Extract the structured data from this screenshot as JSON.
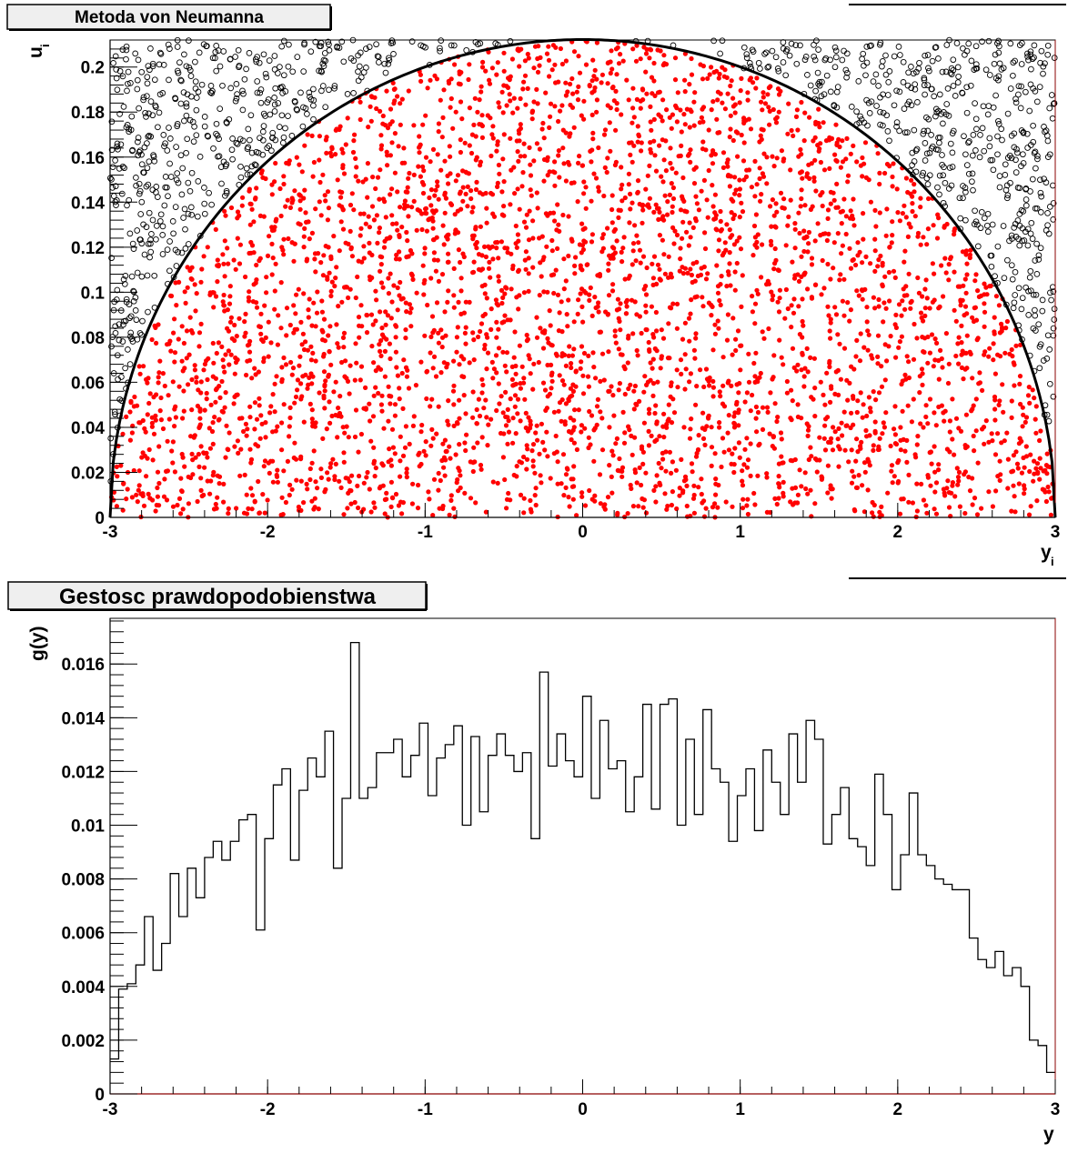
{
  "chart_data": [
    {
      "type": "scatter",
      "title": "Metoda von Neumanna",
      "xlabel": "y",
      "xlabel_sub": "i",
      "ylabel": "u",
      "ylabel_sub": "i",
      "xlim": [
        -3,
        3
      ],
      "ylim": [
        0,
        0.212
      ],
      "x_ticks": [
        "-3",
        "-2",
        "-1",
        "0",
        "1",
        "2",
        "3"
      ],
      "y_ticks": [
        "0",
        "0.02",
        "0.04",
        "0.06",
        "0.08",
        "0.1",
        "0.12",
        "0.14",
        "0.16",
        "0.18",
        "0.2"
      ],
      "grid": false,
      "colors": {
        "accepted": "#ff0000",
        "rejected": "#000000",
        "curve": "#000000"
      },
      "curve": {
        "type": "semicircle",
        "center_x": 0,
        "radius": 3,
        "peak_y": 0.2122
      },
      "series": [
        {
          "marker": "filled-star",
          "color": "#ff0000",
          "point_count": 3900,
          "distribution": "uniform under curve"
        },
        {
          "marker": "open-circle",
          "color": "#000000",
          "point_count": 1050,
          "distribution": "uniform above curve"
        }
      ]
    },
    {
      "type": "histogram",
      "title": "Gestosc prawdopodobienstwa",
      "xlabel": "y",
      "ylabel": "g(y)",
      "xlim": [
        -3,
        3
      ],
      "ylim": [
        0,
        0.0177
      ],
      "x_ticks": [
        "-3",
        "-2",
        "-1",
        "0",
        "1",
        "2",
        "3"
      ],
      "y_ticks": [
        "0",
        "0.002",
        "0.004",
        "0.006",
        "0.008",
        "0.01",
        "0.012",
        "0.014",
        "0.016"
      ],
      "grid": false,
      "bin_width": 0.0667,
      "values": [
        0.0013,
        0.0039,
        0.0041,
        0.0048,
        0.0066,
        0.0046,
        0.0056,
        0.0082,
        0.0066,
        0.0084,
        0.0073,
        0.0088,
        0.0094,
        0.0087,
        0.0094,
        0.0102,
        0.0104,
        0.0061,
        0.0095,
        0.0115,
        0.0121,
        0.0087,
        0.0113,
        0.0125,
        0.0118,
        0.0135,
        0.0084,
        0.011,
        0.0168,
        0.011,
        0.0114,
        0.0127,
        0.0127,
        0.0132,
        0.0118,
        0.0126,
        0.0138,
        0.0111,
        0.0125,
        0.013,
        0.0137,
        0.01,
        0.0133,
        0.0105,
        0.0126,
        0.0134,
        0.0126,
        0.012,
        0.0127,
        0.0095,
        0.0157,
        0.0122,
        0.0134,
        0.0124,
        0.0118,
        0.0148,
        0.011,
        0.0139,
        0.0121,
        0.0124,
        0.0105,
        0.0118,
        0.0145,
        0.0106,
        0.0145,
        0.0147,
        0.01,
        0.0132,
        0.0104,
        0.0143,
        0.0121,
        0.0116,
        0.0094,
        0.0111,
        0.0121,
        0.0098,
        0.0128,
        0.0116,
        0.0104,
        0.0134,
        0.0116,
        0.0139,
        0.0132,
        0.0093,
        0.0104,
        0.0114,
        0.0095,
        0.0092,
        0.0085,
        0.0119,
        0.0104,
        0.0076,
        0.0089,
        0.0112,
        0.0089,
        0.0085,
        0.008,
        0.0078,
        0.0076,
        0.0076,
        0.0058,
        0.005,
        0.0047,
        0.0053,
        0.0044,
        0.0047,
        0.004,
        0.002,
        0.0018,
        0.0008
      ]
    }
  ]
}
